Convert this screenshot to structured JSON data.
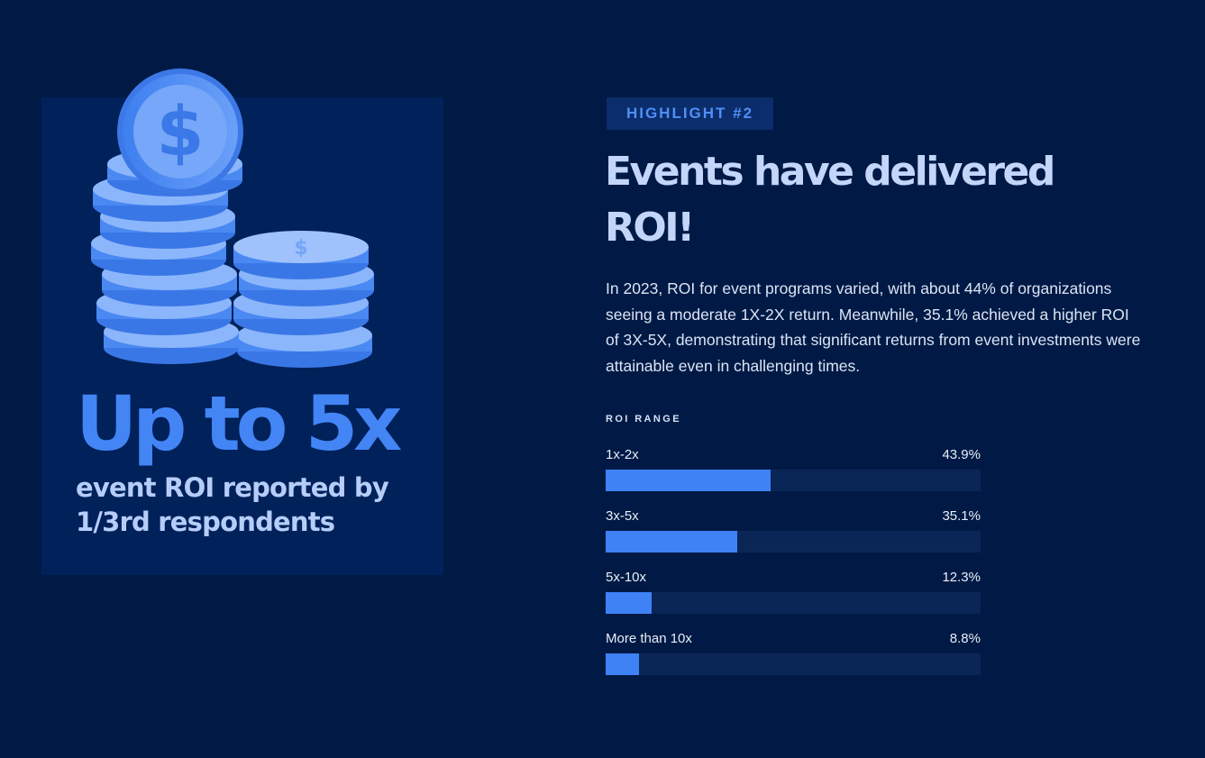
{
  "card": {
    "big_stat": "Up to 5x",
    "caption": "event ROI reported by 1/3rd respondents",
    "coin_icon": "dollar-coin-stack-icon"
  },
  "highlight": {
    "label": "HIGHLIGHT #2"
  },
  "headline": "Events have delivered ROI!",
  "body": "In 2023, ROI for event programs varied, with about 44% of organizations seeing a moderate 1X-2X return. Meanwhile, 35.1% achieved a higher ROI of 3X-5X, demonstrating that significant returns from event investments were attainable even in challenging times.",
  "colors": {
    "background": "#001a45",
    "card": "#00215a",
    "accent": "#3f82f6",
    "track": "#0a2656"
  },
  "chart_data": {
    "type": "bar",
    "orientation": "horizontal",
    "title": "ROI RANGE",
    "categories": [
      "1x-2x",
      "3x-5x",
      "5x-10x",
      "More than 10x"
    ],
    "values": [
      43.9,
      35.1,
      12.3,
      8.8
    ],
    "value_labels": [
      "43.9%",
      "35.1%",
      "12.3%",
      "8.8%"
    ],
    "xlim": [
      0,
      100
    ],
    "grid": false
  }
}
